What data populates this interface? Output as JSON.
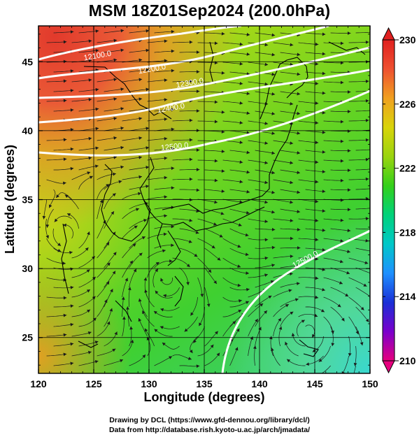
{
  "title": "MSM 18Z01Sep2024 (200.0hPa)",
  "footer": {
    "line1": "Drawing by DCL (https://www.gfd-dennou.org/library/dcl/)",
    "line2": "Data from http://database.rish.kyoto-u.ac.jp/arch/jmadata/"
  },
  "chart_data": {
    "type": "map",
    "xlabel": "Longitude (degrees)",
    "ylabel": "Latitude  (degrees)",
    "xlim": [
      120,
      150
    ],
    "ylim": [
      22.4,
      47.6
    ],
    "x_ticks": [
      "120",
      "125",
      "130",
      "135",
      "140",
      "145",
      "150"
    ],
    "y_ticks": [
      "25",
      "30",
      "35",
      "40",
      "45"
    ],
    "grid": true,
    "colorbar": {
      "range": [
        210,
        230
      ],
      "tick_labels": [
        "230",
        "226",
        "222",
        "218",
        "214",
        "210"
      ],
      "colors": [
        "#e6007e",
        "#7a00cc",
        "#1a2fd6",
        "#1e90ff",
        "#00c8c8",
        "#00d27a",
        "#33d01a",
        "#9ad40f",
        "#d8d40a",
        "#f0a020",
        "#ee5030",
        "#e02020"
      ]
    },
    "contours": [
      {
        "label": "12100.0"
      },
      {
        "label": "12200.0"
      },
      {
        "label": "12300.0"
      },
      {
        "label": "12400.0"
      },
      {
        "label": "12500.0"
      },
      {
        "label": "12500.0"
      }
    ],
    "field": "temperature shading with geopotential height contours and wind streamlines"
  }
}
